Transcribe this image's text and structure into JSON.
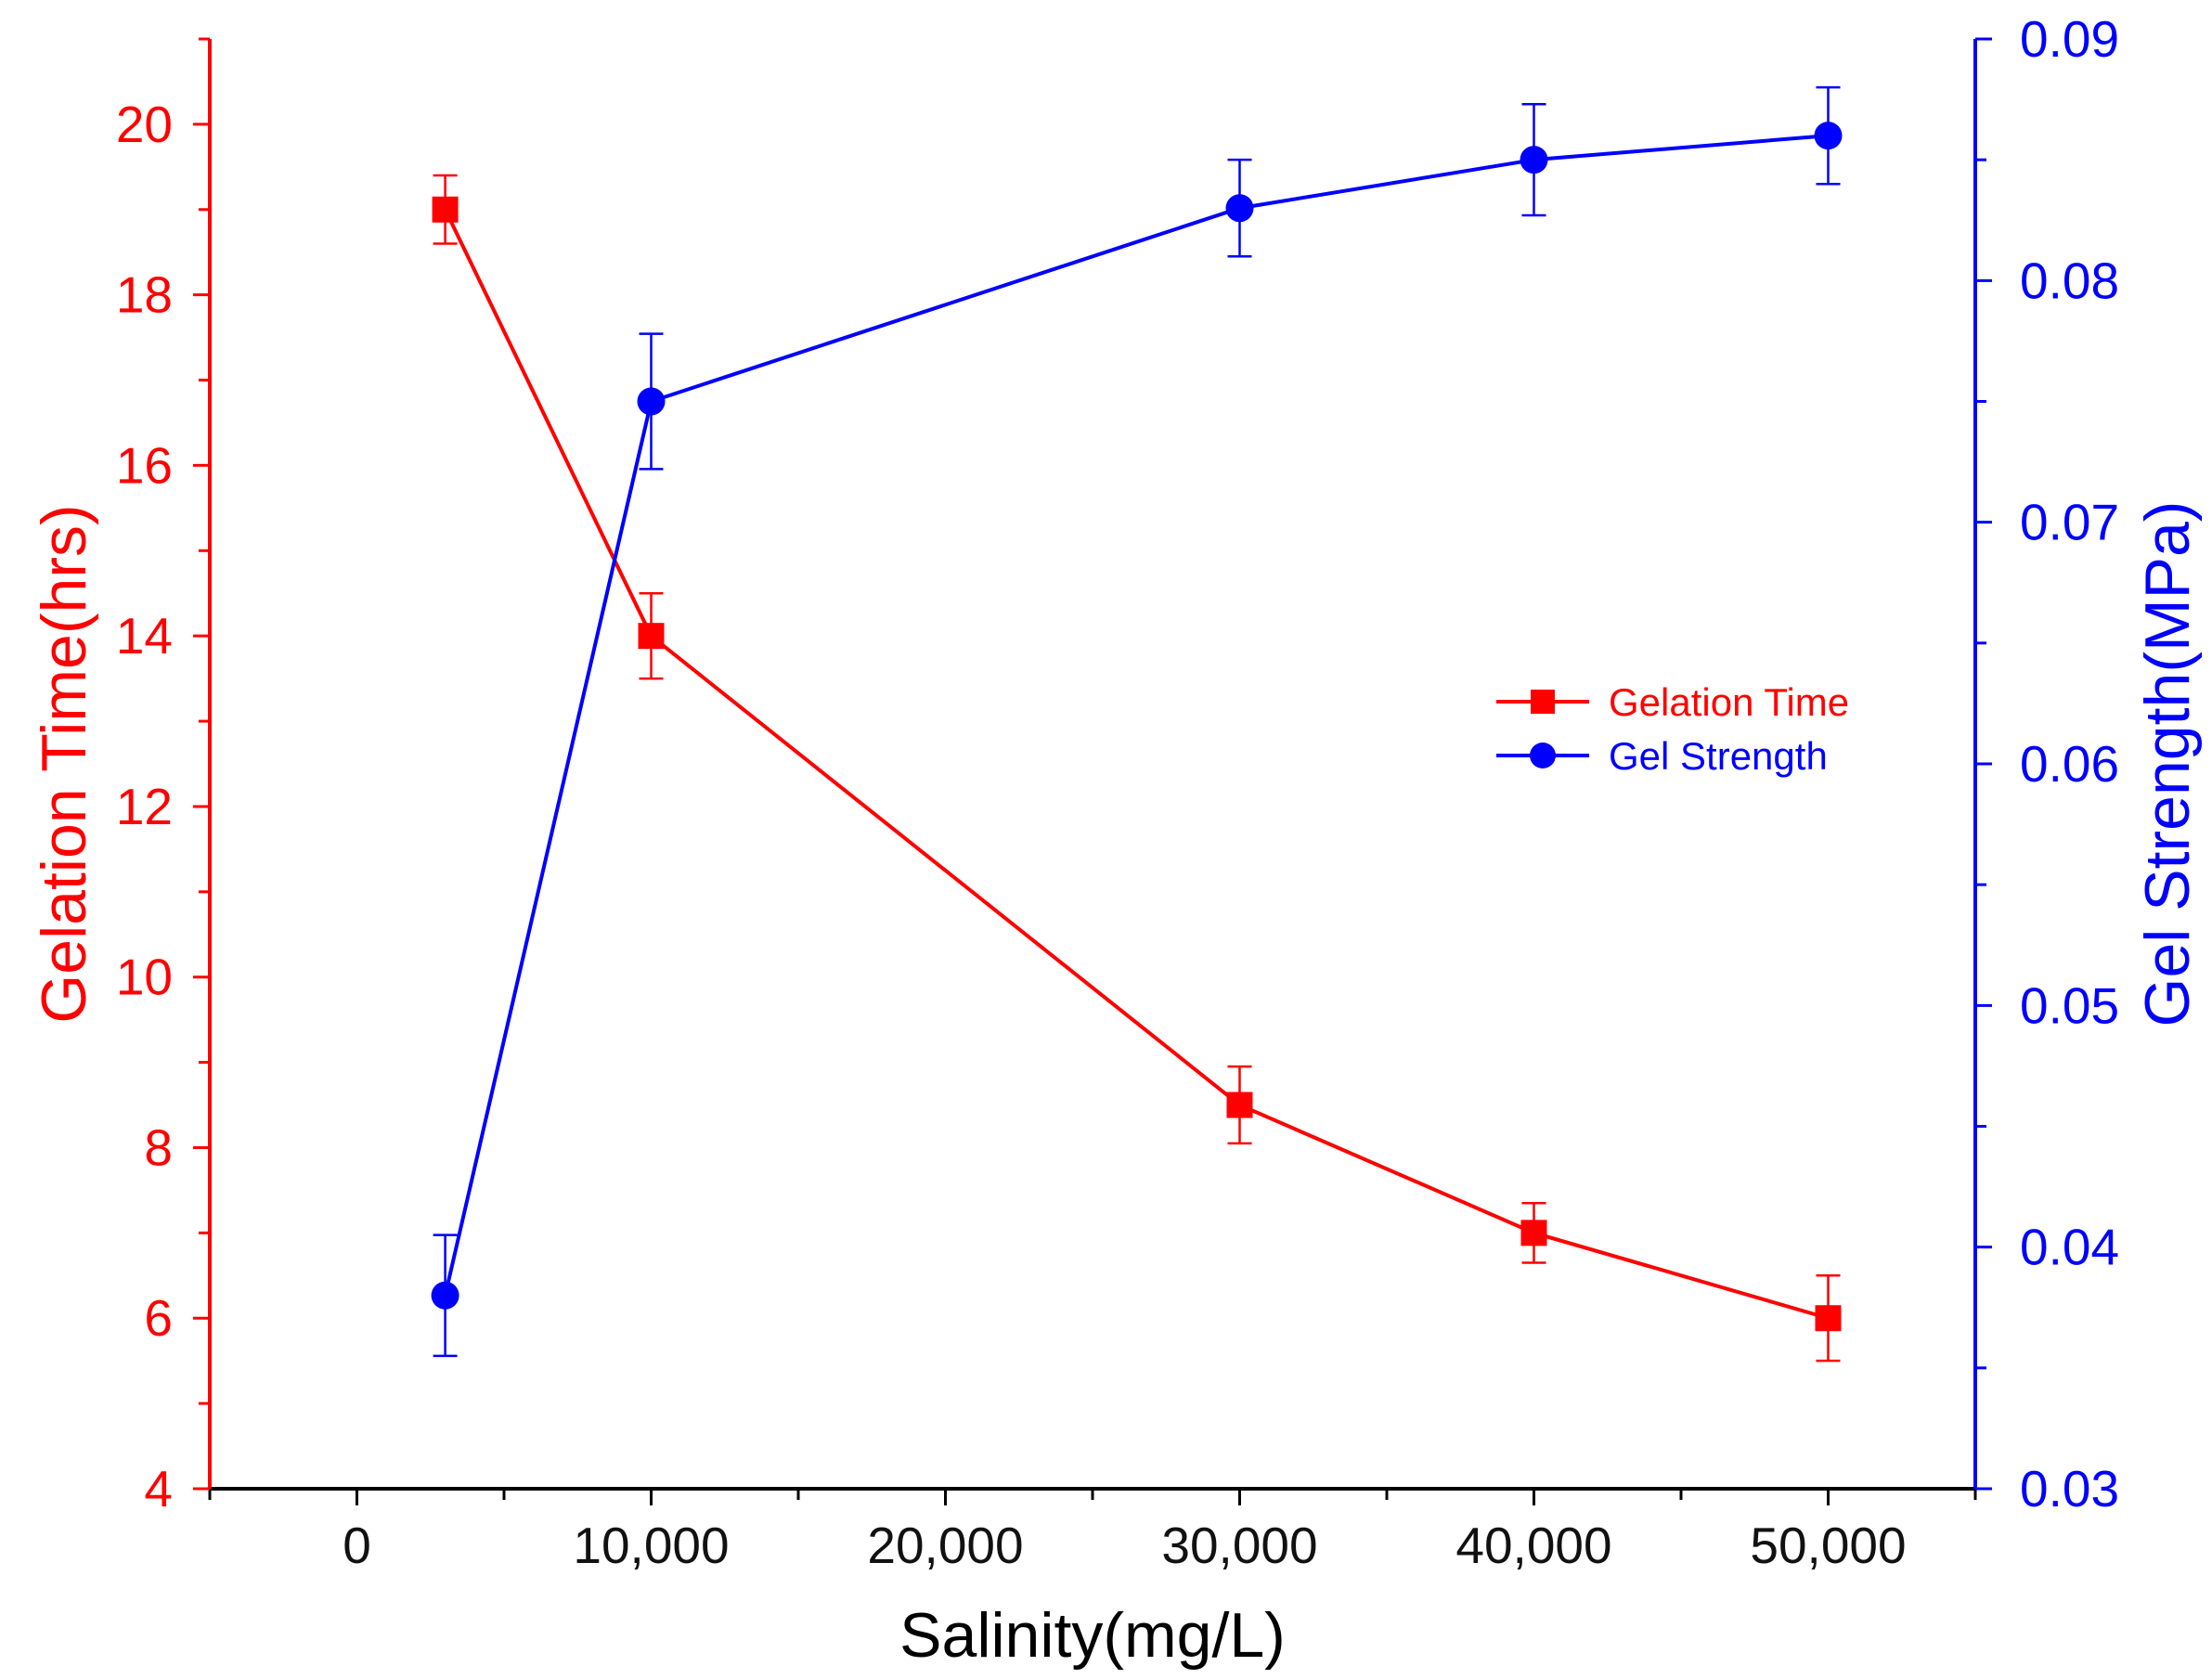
{
  "chart_data": {
    "type": "line",
    "title": "",
    "xlabel": "Salinity(mg/L)",
    "ylabel_left": "Gelation Time(hrs)",
    "ylabel_right": "Gel Strength(MPa)",
    "xlim": [
      -5000,
      55000
    ],
    "ylim_left": [
      4,
      21
    ],
    "ylim_right": [
      0.03,
      0.09
    ],
    "x_ticks": [
      0,
      10000,
      20000,
      30000,
      40000,
      50000
    ],
    "x_tick_labels": [
      "0",
      "10,000",
      "20,000",
      "30,000",
      "40,000",
      "50,000"
    ],
    "y_left_ticks": [
      4,
      6,
      8,
      10,
      12,
      14,
      16,
      18,
      20
    ],
    "y_left_tick_labels": [
      "4",
      "6",
      "8",
      "10",
      "12",
      "14",
      "16",
      "18",
      "20"
    ],
    "y_right_ticks": [
      0.03,
      0.04,
      0.05,
      0.06,
      0.07,
      0.08,
      0.09
    ],
    "y_right_tick_labels": [
      "0.03",
      "0.04",
      "0.05",
      "0.06",
      "0.07",
      "0.08",
      "0.09"
    ],
    "grid": false,
    "legend_position": "center-right",
    "series": [
      {
        "name": "Gelation Time",
        "axis": "left",
        "marker": "square",
        "color": "#ff0000",
        "x": [
          3000,
          10000,
          30000,
          40000,
          50000
        ],
        "values": [
          19,
          14,
          8.5,
          7,
          6
        ],
        "errors": [
          0.4,
          0.5,
          0.45,
          0.35,
          0.5
        ]
      },
      {
        "name": "Gel Strength",
        "axis": "right",
        "marker": "circle",
        "color": "#0000ff",
        "x": [
          3000,
          10000,
          30000,
          40000,
          50000
        ],
        "values": [
          0.038,
          0.075,
          0.083,
          0.085,
          0.086
        ],
        "errors": [
          0.0025,
          0.0028,
          0.002,
          0.0023,
          0.002
        ]
      }
    ]
  }
}
